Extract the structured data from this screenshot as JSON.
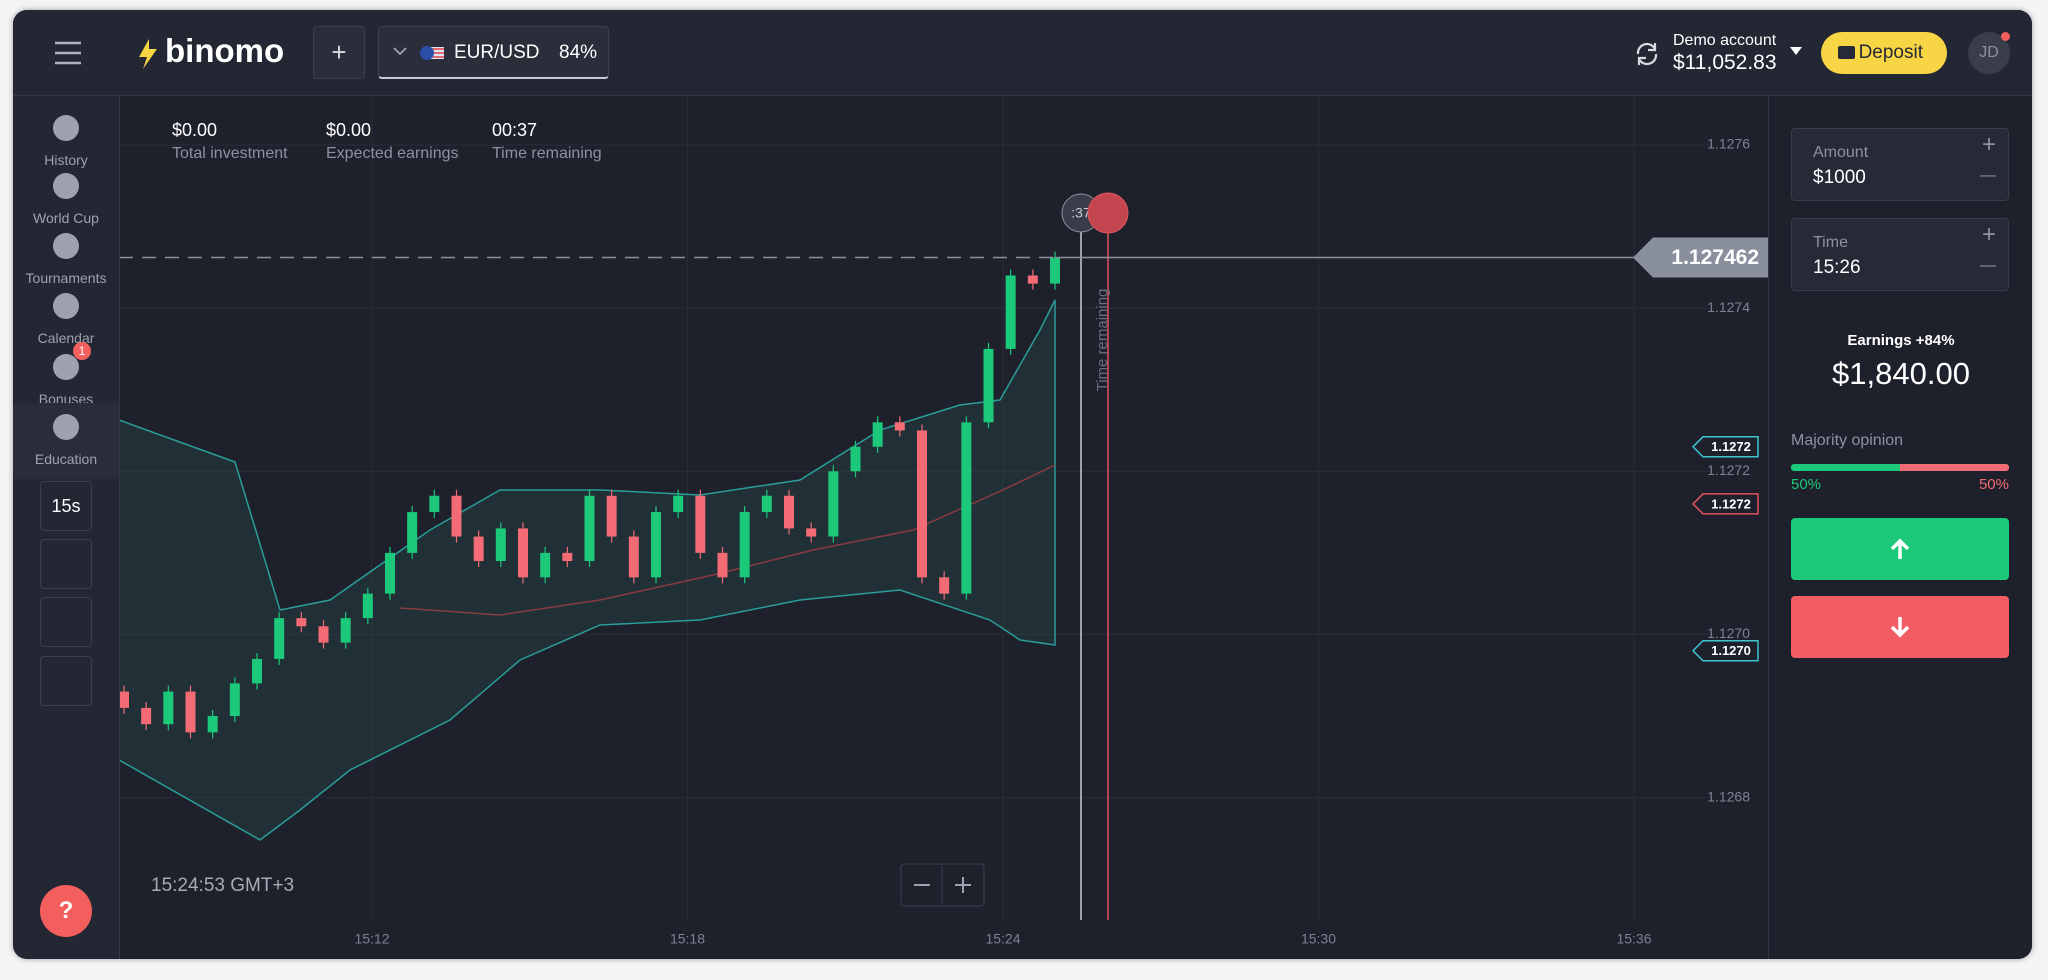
{
  "header": {
    "logo": "binomo",
    "add": "+",
    "asset": "EUR/USD",
    "payout": "84%",
    "account_label": "Demo account",
    "balance": "$11,052.83",
    "deposit": "Deposit",
    "avatar": "JD"
  },
  "sidebar": {
    "items": [
      "History",
      "World Cup",
      "Tournaments",
      "Calendar",
      "Bonuses",
      "Education"
    ],
    "bonus_badge": "1",
    "timeframe": "15s",
    "help": "?"
  },
  "stats": [
    {
      "value": "$0.00",
      "label": "Total investment"
    },
    {
      "value": "$0.00",
      "label": "Expected earnings"
    },
    {
      "value": "00:37",
      "label": "Time remaining"
    }
  ],
  "price_chart": {
    "type": "candlestick",
    "ylim": [
      1.12665,
      1.12766
    ],
    "yticks": [
      1.1276,
      1.1274,
      1.1272,
      {
        "value": 1.127,
        "label": "1.1270"
      },
      1.1268
    ],
    "xticks": [
      "15:12",
      "15:18",
      "15:24",
      "15:30",
      "15:36"
    ],
    "current_price": 1.127462,
    "indicator_tags": [
      {
        "value": 1.12723,
        "label": "1.1272",
        "color": "#3fc6d0"
      },
      {
        "value": 1.12716,
        "label": "1.1272",
        "color": "#e2535d"
      },
      {
        "value": 1.12698,
        "label": "1.1270",
        "color": "#3fc6d0"
      }
    ],
    "timer": ":37",
    "time_remaining": "Time remaining",
    "clock": "15:24:53 GMT+3",
    "up_color": "#1cc87a",
    "down_color": "#f26b75",
    "candles": [
      [
        1.12693,
        1.12691
      ],
      [
        1.12691,
        1.12689
      ],
      [
        1.12689,
        1.12693
      ],
      [
        1.12693,
        1.12688
      ],
      [
        1.12688,
        1.1269
      ],
      [
        1.1269,
        1.12694
      ],
      [
        1.12694,
        1.12697
      ],
      [
        1.12697,
        1.12702
      ],
      [
        1.12702,
        1.12701
      ],
      [
        1.12701,
        1.12699
      ],
      [
        1.12699,
        1.12702
      ],
      [
        1.12702,
        1.12705
      ],
      [
        1.12705,
        1.1271
      ],
      [
        1.1271,
        1.12715
      ],
      [
        1.12715,
        1.12717
      ],
      [
        1.12717,
        1.12712
      ],
      [
        1.12712,
        1.12709
      ],
      [
        1.12709,
        1.12713
      ],
      [
        1.12713,
        1.12707
      ],
      [
        1.12707,
        1.1271
      ],
      [
        1.1271,
        1.12709
      ],
      [
        1.12709,
        1.12717
      ],
      [
        1.12717,
        1.12712
      ],
      [
        1.12712,
        1.12707
      ],
      [
        1.12707,
        1.12715
      ],
      [
        1.12715,
        1.12717
      ],
      [
        1.12717,
        1.1271
      ],
      [
        1.1271,
        1.12707
      ],
      [
        1.12707,
        1.12715
      ],
      [
        1.12715,
        1.12717
      ],
      [
        1.12717,
        1.12713
      ],
      [
        1.12713,
        1.12712
      ],
      [
        1.12712,
        1.1272
      ],
      [
        1.1272,
        1.12723
      ],
      [
        1.12723,
        1.12726
      ],
      [
        1.12726,
        1.12725
      ],
      [
        1.12725,
        1.12707
      ],
      [
        1.12707,
        1.12705
      ],
      [
        1.12705,
        1.12726
      ],
      [
        1.12726,
        1.12735
      ],
      [
        1.12735,
        1.12744
      ],
      [
        1.12744,
        1.12743
      ],
      [
        1.12743,
        1.127462
      ]
    ]
  },
  "trade_panel": {
    "amount_label": "Amount",
    "amount": "$1000",
    "time_label": "Time",
    "time": "15:26",
    "earnings_label": "Earnings",
    "earnings_pct": "+84%",
    "earnings": "$1,840.00",
    "majority_label": "Majority opinion",
    "up_pct": "50%",
    "down_pct": "50%",
    "plus": "+",
    "minus": "—"
  }
}
